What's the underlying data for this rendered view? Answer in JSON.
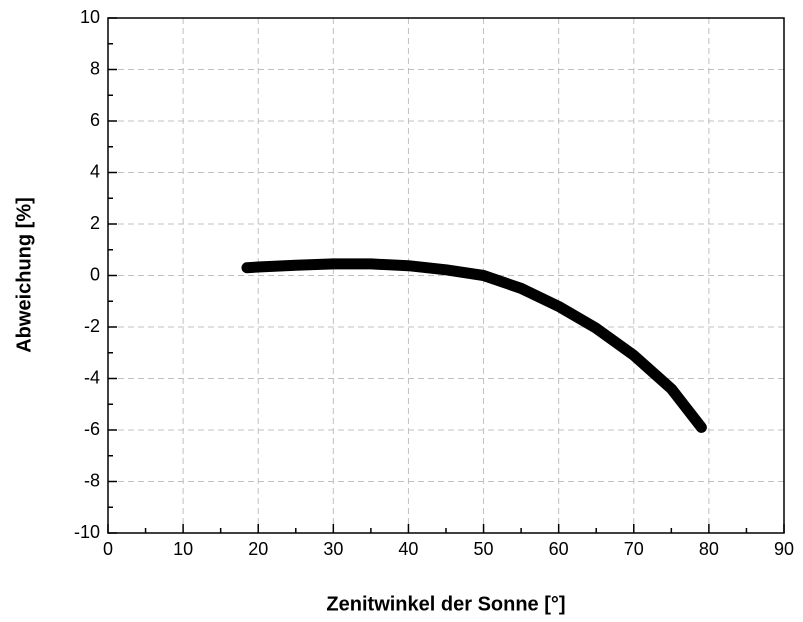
{
  "chart_data": {
    "type": "line",
    "xlabel": "Zenitwinkel der Sonne [°]",
    "ylabel": "Abweichung [%]",
    "x": [
      18.5,
      20,
      25,
      30,
      35,
      40,
      45,
      50,
      55,
      60,
      65,
      70,
      75,
      79
    ],
    "series": [
      {
        "color": "#000000",
        "values": [
          0.3,
          0.33,
          0.4,
          0.45,
          0.45,
          0.38,
          0.22,
          0.0,
          -0.5,
          -1.2,
          -2.05,
          -3.1,
          -4.4,
          -5.9
        ]
      }
    ],
    "xlim": [
      0,
      90
    ],
    "xticks": [
      0,
      10,
      20,
      30,
      40,
      50,
      60,
      70,
      80,
      90
    ],
    "ylim": [
      -10,
      10
    ],
    "yticks": [
      -10,
      -8,
      -6,
      -4,
      -2,
      0,
      2,
      4,
      6,
      8,
      10
    ],
    "grid": true
  }
}
